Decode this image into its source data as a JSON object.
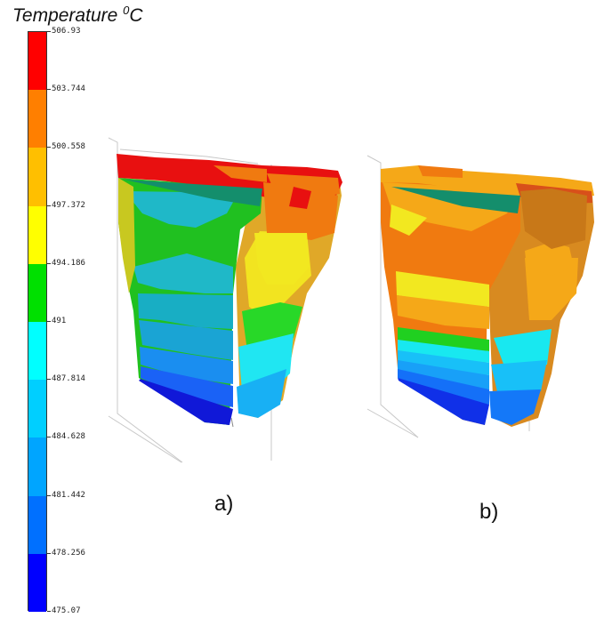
{
  "figure": {
    "title_main": "Temperature ",
    "title_sup": "0",
    "title_unit": "C",
    "panel_a_label": "a)",
    "panel_b_label": "b)"
  },
  "legend": {
    "ticks": [
      "506.93",
      "503.744",
      "500.558",
      "497.372",
      "494.186",
      "491",
      "487.814",
      "484.628",
      "481.442",
      "478.256",
      "475.07"
    ],
    "band_colors": [
      "#ff0000",
      "#ff7f00",
      "#ffbf00",
      "#ffff00",
      "#00e000",
      "#00ffff",
      "#00cfff",
      "#00a5ff",
      "#0070ff",
      "#0000ff"
    ]
  },
  "colors": {
    "red": "#e81010",
    "orange": "#f07a10",
    "lightorange": "#f5a818",
    "yellow": "#f2e820",
    "green": "#20d020",
    "teal": "#18b8c8",
    "cyan": "#18e8f0",
    "lightblue": "#18c0f8",
    "blue": "#1478f8",
    "deepblue": "#1020e0"
  }
}
